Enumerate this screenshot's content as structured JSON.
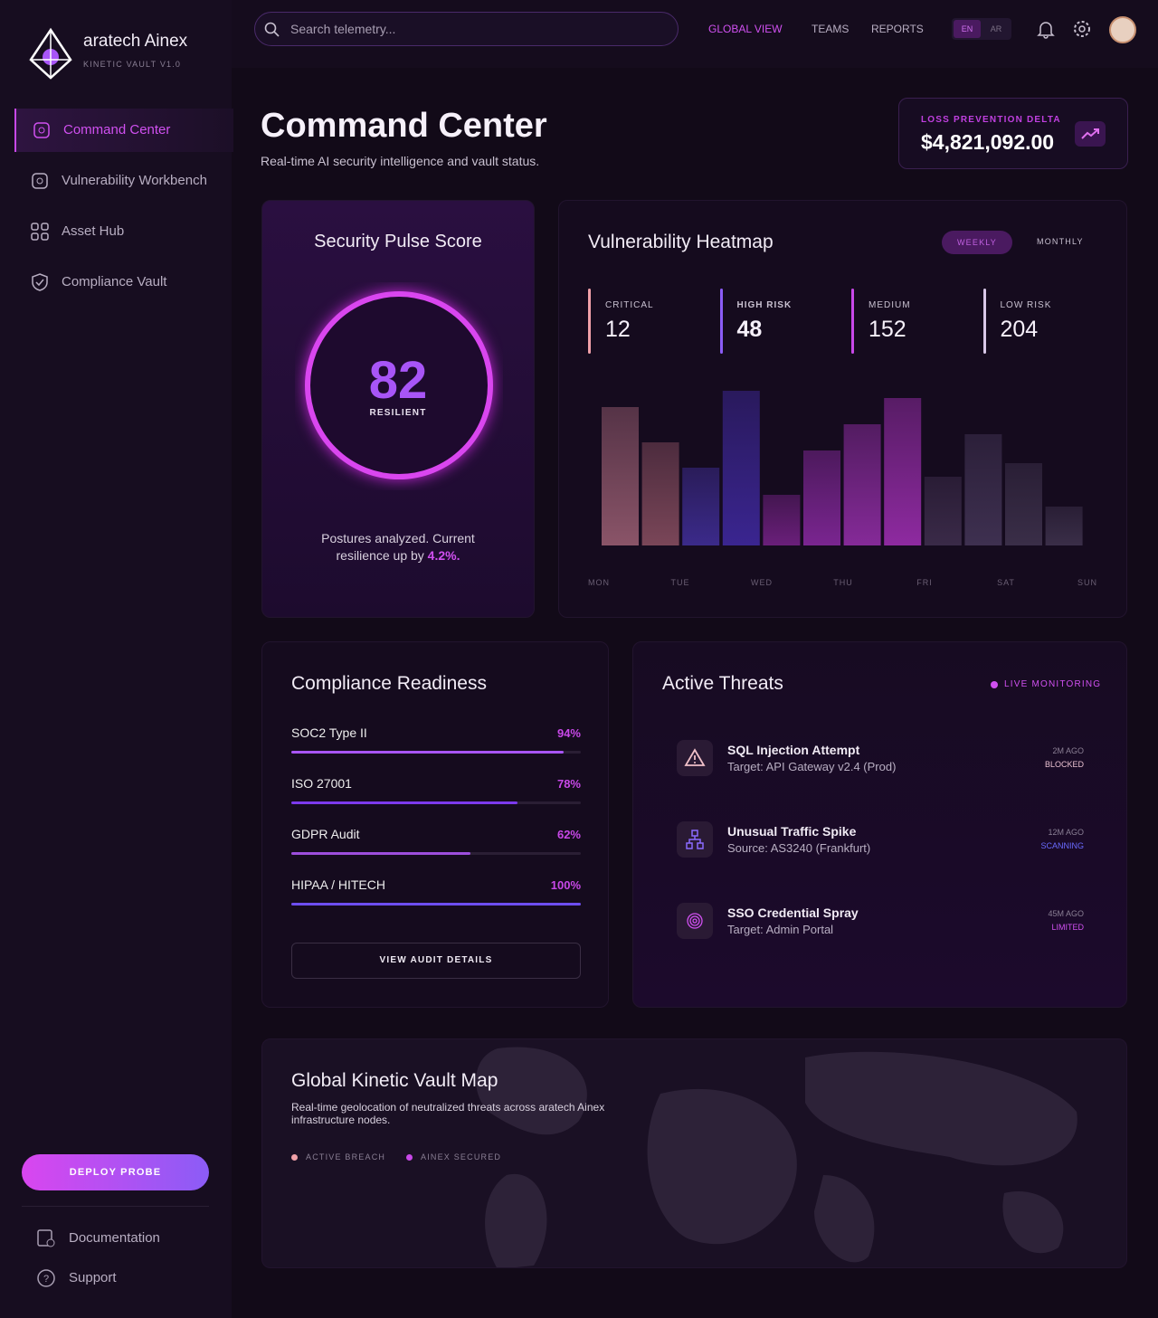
{
  "brand": {
    "name": "aratech Ainex",
    "version": "KINETIC VAULT V1.0"
  },
  "nav": [
    "Command Center",
    "Vulnerability Workbench",
    "Asset Hub",
    "Compliance Vault"
  ],
  "deploy": "DEPLOY PROBE",
  "footer_nav": [
    "Documentation",
    "Support"
  ],
  "search": "Search telemetry...",
  "top_nav": [
    "GLOBAL VIEW",
    "TEAMS",
    "REPORTS"
  ],
  "lang": [
    "EN",
    "AR"
  ],
  "header": {
    "title": "Command Center",
    "subtitle": "Real-time AI security intelligence and vault status."
  },
  "loss": {
    "label": "LOSS PREVENTION DELTA",
    "value": "$4,821,092.00"
  },
  "pulse": {
    "title": "Security Pulse Score",
    "score": 82,
    "status": "RESILIENT",
    "text": "Postures analyzed. Current resilience up by",
    "delta": "4.2%."
  },
  "heatmap": {
    "title": "Vulnerability Heatmap",
    "tabs": [
      "WEEKLY",
      "MONTHLY"
    ],
    "stats": [
      {
        "label": "CRITICAL",
        "value": 12
      },
      {
        "label": "HIGH RISK",
        "value": 48
      },
      {
        "label": "MEDIUM",
        "value": 152
      },
      {
        "label": "LOW RISK",
        "value": 204
      }
    ],
    "bars": [
      153,
      114,
      86,
      171,
      56,
      105,
      134,
      163,
      76,
      123,
      91,
      43
    ],
    "colors": [
      "#8a5468",
      "#7a4658",
      "#3b2a8a",
      "#3a2590",
      "#6a1f7a",
      "#7a2590",
      "#852a98",
      "#8e2aa0",
      "#3a2a48",
      "#3e3050",
      "#3a2e48",
      "#3a2e48"
    ],
    "days": [
      "MON",
      "TUE",
      "WED",
      "THU",
      "FRI",
      "SAT",
      "SUN"
    ]
  },
  "compliance": {
    "title": "Compliance Readiness",
    "xlim": [
      0,
      100
    ],
    "items": [
      {
        "name": "SOC2 Type II",
        "value": 94,
        "value_label": "94%"
      },
      {
        "name": "ISO 27001",
        "value": 78,
        "value_label": "78%"
      },
      {
        "name": "GDPR Audit",
        "value": 62,
        "value_label": "62%"
      },
      {
        "name": "HIPAA / HITECH",
        "value": 100,
        "value_label": "100%"
      }
    ],
    "button": "VIEW AUDIT DETAILS"
  },
  "threats": {
    "title": "Active Threats",
    "status": "LIVE MONITORING",
    "items": [
      {
        "title": "SQL Injection Attempt",
        "detail": "Target: API Gateway v2.4 (Prod)",
        "time": "2M AGO",
        "state": "BLOCKED"
      },
      {
        "title": "Unusual Traffic Spike",
        "detail": "Source: AS3240 (Frankfurt)",
        "time": "12M AGO",
        "state": "SCANNING"
      },
      {
        "title": "SSO Credential Spray",
        "detail": "Target: Admin Portal",
        "time": "45M AGO",
        "state": "LIMITED"
      }
    ]
  },
  "map": {
    "title": "Global Kinetic Vault Map",
    "text": "Real-time geolocation of neutralized threats across aratech Ainex infrastructure nodes.",
    "legend": [
      "ACTIVE BREACH",
      "AINEX SECURED"
    ]
  }
}
